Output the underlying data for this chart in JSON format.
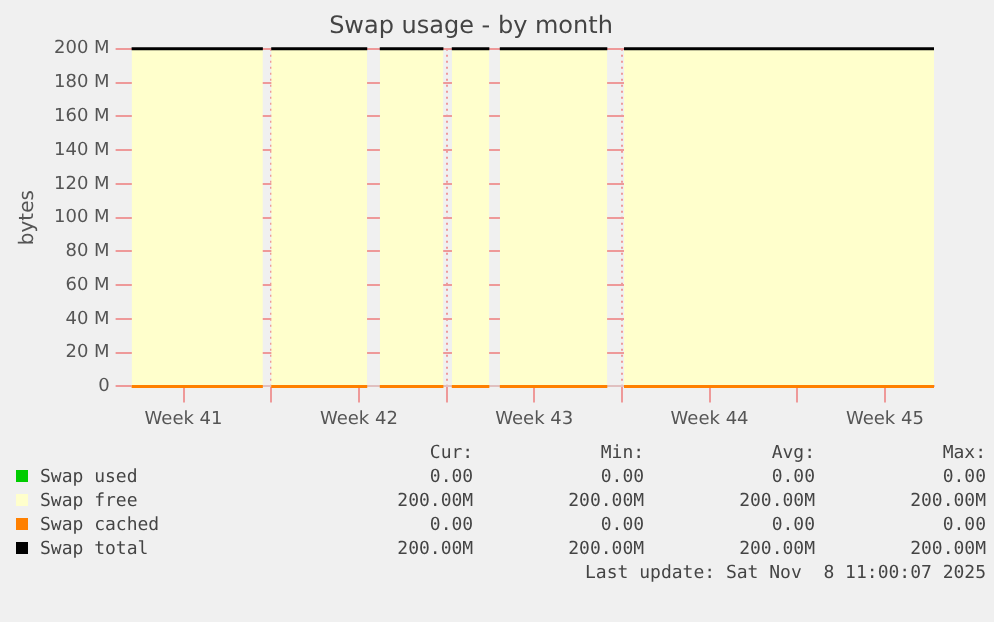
{
  "chart_data": {
    "type": "area",
    "title": "Swap usage - by month",
    "ylabel": "bytes",
    "x": [
      "2025-10-07T10:15",
      "2025-10-12T16:00",
      "2025-10-12T20:00",
      "2025-10-13T00:00",
      "2025-10-16T20:00",
      "2025-10-17T02:00",
      "2025-10-17T08:00",
      "2025-10-19T21:00",
      "2025-10-20T01:00",
      "2025-10-20T05:00",
      "2025-10-21T17:00",
      "2025-10-21T22:00",
      "2025-10-22T03:00",
      "2025-10-26T10:00",
      "2025-10-26T18:00",
      "2025-10-27T02:00",
      "2025-11-08T11:00"
    ],
    "series": [
      {
        "name": "Swap used",
        "color": "#00cc00",
        "type": "line",
        "values": [
          null,
          null,
          null,
          null,
          null,
          null,
          null,
          null,
          null,
          null,
          null,
          null,
          null,
          null,
          null,
          null,
          null
        ]
      },
      {
        "name": "Swap free",
        "color": "#ffffcc",
        "values": [
          200000000,
          200000000,
          null,
          200000000,
          200000000,
          null,
          200000000,
          200000000,
          null,
          200000000,
          200000000,
          null,
          200000000,
          200000000,
          null,
          200000000,
          200000000
        ]
      },
      {
        "name": "Swap cached",
        "color": "#ff8000",
        "type": "line",
        "values": [
          0,
          0,
          null,
          0,
          0,
          null,
          0,
          0,
          null,
          0,
          0,
          null,
          0,
          0,
          null,
          0,
          0
        ]
      },
      {
        "name": "Swap total",
        "color": "#000000",
        "type": "line",
        "values": [
          200000000,
          200000000,
          null,
          200000000,
          200000000,
          null,
          200000000,
          200000000,
          null,
          200000000,
          200000000,
          null,
          200000000,
          200000000,
          null,
          200000000,
          200000000
        ]
      }
    ],
    "xlim": [
      "2025-10-07T10:15",
      "2025-11-08T11:00"
    ],
    "xticks": [
      {
        "value": "2025-10-09T12:00",
        "label": "Week 41"
      },
      {
        "value": "2025-10-13T00:00",
        "label": null
      },
      {
        "value": "2025-10-16T12:00",
        "label": "Week 42"
      },
      {
        "value": "2025-10-20T00:00",
        "label": null
      },
      {
        "value": "2025-10-23T12:00",
        "label": "Week 43"
      },
      {
        "value": "2025-10-27T00:00",
        "label": null
      },
      {
        "value": "2025-10-30T12:00",
        "label": "Week 44"
      },
      {
        "value": "2025-11-03T00:00",
        "label": null
      },
      {
        "value": "2025-11-06T12:00",
        "label": "Week 45"
      }
    ],
    "ylim": [
      0,
      200000000
    ],
    "yticks": [
      {
        "value": 0,
        "label": "0"
      },
      {
        "value": 20000000,
        "label": "20 M"
      },
      {
        "value": 40000000,
        "label": "40 M"
      },
      {
        "value": 60000000,
        "label": "60 M"
      },
      {
        "value": 80000000,
        "label": "80 M"
      },
      {
        "value": 100000000,
        "label": "100 M"
      },
      {
        "value": 120000000,
        "label": "120 M"
      },
      {
        "value": 140000000,
        "label": "140 M"
      },
      {
        "value": 160000000,
        "label": "160 M"
      },
      {
        "value": 180000000,
        "label": "180 M"
      },
      {
        "value": 200000000,
        "label": "200 M"
      }
    ],
    "grid": true,
    "legend": "bottom",
    "annotations": [
      "Cur:",
      "Min:",
      "Avg:",
      "Max:",
      "0.00",
      "0.00",
      "0.00",
      "0.00",
      "200.00M",
      "200.00M",
      "200.00M",
      "200.00M",
      "0.00",
      "0.00",
      "0.00",
      "0.00",
      "200.00M",
      "200.00M",
      "200.00M",
      "200.00M",
      "Last update: Sat Nov  8 11:00:07 2025"
    ]
  }
}
